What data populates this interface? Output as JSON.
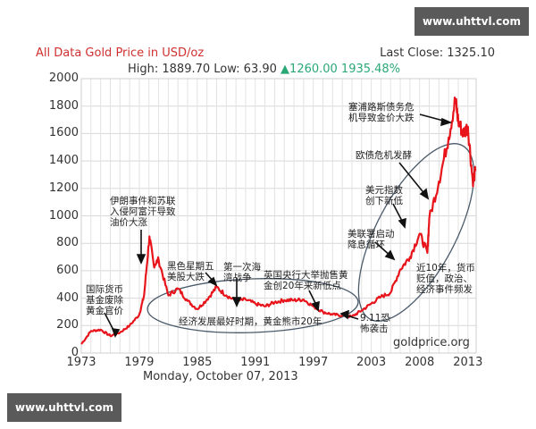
{
  "watermark_top": "www.uhttvl.com",
  "watermark_bottom": "www.uhttvl.com",
  "header": {
    "title": "All Data Gold Price in USD/oz",
    "last_close": "Last Close: 1325.10",
    "high_low": "High: 1889.70 Low: 63.90",
    "change": "▲1260.00 1935.48%"
  },
  "footer": {
    "date": "Monday, October 07, 2013",
    "source": "goldprice.org"
  },
  "colors": {
    "line": "#e8141b",
    "title": "#d0302f",
    "change": "#2aa876",
    "ellipse": "#4a5a6a"
  },
  "chart_data": {
    "type": "line",
    "title": "All Data Gold Price in USD/oz",
    "xlabel": "Monday, October 07, 2013",
    "ylabel": "",
    "ylim": [
      0,
      2000
    ],
    "grid": true,
    "yticks": [
      "0",
      "200",
      "400",
      "600",
      "800",
      "1000",
      "1200",
      "1400",
      "1600",
      "1800",
      "2000"
    ],
    "xticks": [
      "1973",
      "1979",
      "1985",
      "1991",
      "1997",
      "2003",
      "2008",
      "2013"
    ],
    "series": [
      {
        "name": "Gold Price USD/oz",
        "x": [
          1973,
          1974,
          1975,
          1976,
          1977,
          1978,
          1979,
          1979.5,
          1980.05,
          1980.5,
          1981,
          1982,
          1983,
          1984,
          1985,
          1986,
          1987,
          1988,
          1989,
          1990,
          1991,
          1992,
          1993,
          1994,
          1995,
          1996,
          1997,
          1998,
          1999,
          2000,
          2001,
          2002,
          2003,
          2004,
          2005,
          2006,
          2007,
          2008,
          2008.8,
          2009,
          2010,
          2011,
          2011.7,
          2012,
          2012.5,
          2013,
          2013.5,
          2013.77
        ],
        "values": [
          65,
          160,
          170,
          125,
          150,
          200,
          280,
          420,
          850,
          640,
          680,
          420,
          470,
          380,
          320,
          390,
          480,
          420,
          380,
          390,
          360,
          340,
          370,
          385,
          385,
          390,
          340,
          300,
          280,
          275,
          265,
          310,
          360,
          410,
          440,
          610,
          700,
          870,
          730,
          980,
          1250,
          1570,
          1850,
          1690,
          1600,
          1650,
          1250,
          1325
        ]
      }
    ],
    "annotations": [
      "国际货币基金废除黄金官价",
      "伊朗事件和苏联入侵阿富汗导致油价大涨",
      "黑色星期五美股大跌",
      "第一次海湾战争",
      "英国央行大举抛售黄金创20年来新低点",
      "经济发展最好时期，黄金熊市20年",
      "9.11恐怖袭击",
      "美联署启动降息循环",
      "美元指数创下新低",
      "欧债危机发酵",
      "塞浦路斯债务危机导致金价大跌",
      "近10年，货币贬值，政治、经济事件频发"
    ]
  },
  "annotations": {
    "a1": [
      "国际货币",
      "基金废除",
      "黄金官价"
    ],
    "a2": [
      "伊朗事件和苏联",
      "入侵阿富汗导致",
      "油价大涨"
    ],
    "a3": [
      "黑色星期五",
      "美股大跌"
    ],
    "a4": [
      "第一次海",
      "湾战争"
    ],
    "a5": [
      "英国央行大举抛售黄",
      "金创20年来新低点"
    ],
    "a6": [
      "经济发展最好时期，黄金熊市20年"
    ],
    "a7": [
      "9.11恐",
      "怖袭击"
    ],
    "a8": [
      "美联署启动",
      "降息循环"
    ],
    "a9": [
      "美元指数",
      "创下新低"
    ],
    "a10": [
      "欧债危机发酵"
    ],
    "a11": [
      "塞浦路斯债务危",
      "机导致金价大跌"
    ],
    "a12": [
      "近10年，货币",
      "贬值，政治、",
      "经济事件频发"
    ]
  }
}
